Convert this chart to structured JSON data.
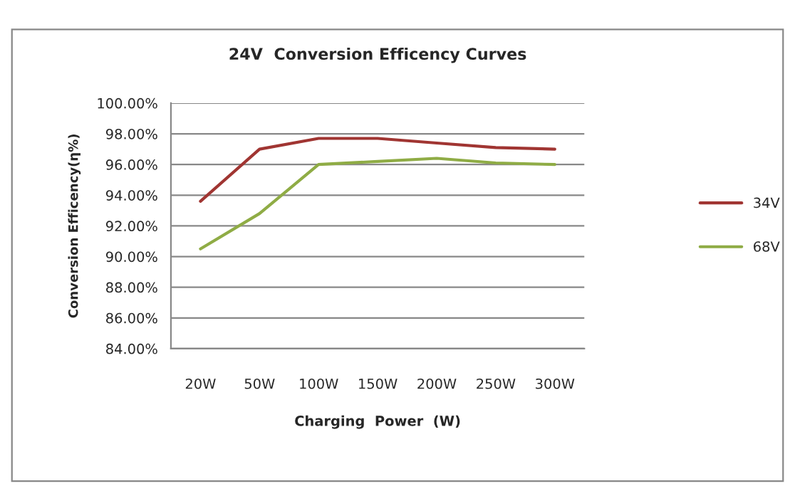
{
  "chart_data": {
    "type": "line",
    "title": "24V  Conversion Efficency Curves",
    "xlabel": "Charging  Power  (W)",
    "ylabel": "Conversion Efficency(η%)",
    "categories": [
      "20W",
      "50W",
      "100W",
      "150W",
      "200W",
      "250W",
      "300W"
    ],
    "series": [
      {
        "name": "34V",
        "color": "#a03532",
        "values": [
          93.6,
          97.0,
          97.7,
          97.7,
          97.4,
          97.1,
          97.0
        ]
      },
      {
        "name": "68V",
        "color": "#8fac45",
        "values": [
          90.5,
          92.8,
          96.0,
          96.2,
          96.4,
          96.1,
          96.0
        ]
      }
    ],
    "ylim": [
      84,
      100
    ],
    "yticks": [
      {
        "value": 84,
        "label": "84.00%"
      },
      {
        "value": 86,
        "label": "86.00%"
      },
      {
        "value": 88,
        "label": "88.00%"
      },
      {
        "value": 90,
        "label": "90.00%"
      },
      {
        "value": 92,
        "label": "92.00%"
      },
      {
        "value": 94,
        "label": "94.00%"
      },
      {
        "value": 96,
        "label": "96.00%"
      },
      {
        "value": 98,
        "label": "98.00%"
      },
      {
        "value": 100,
        "label": "100.00%"
      }
    ],
    "grid": "y",
    "legend": "right",
    "marker": "none",
    "line_style": "solid"
  }
}
